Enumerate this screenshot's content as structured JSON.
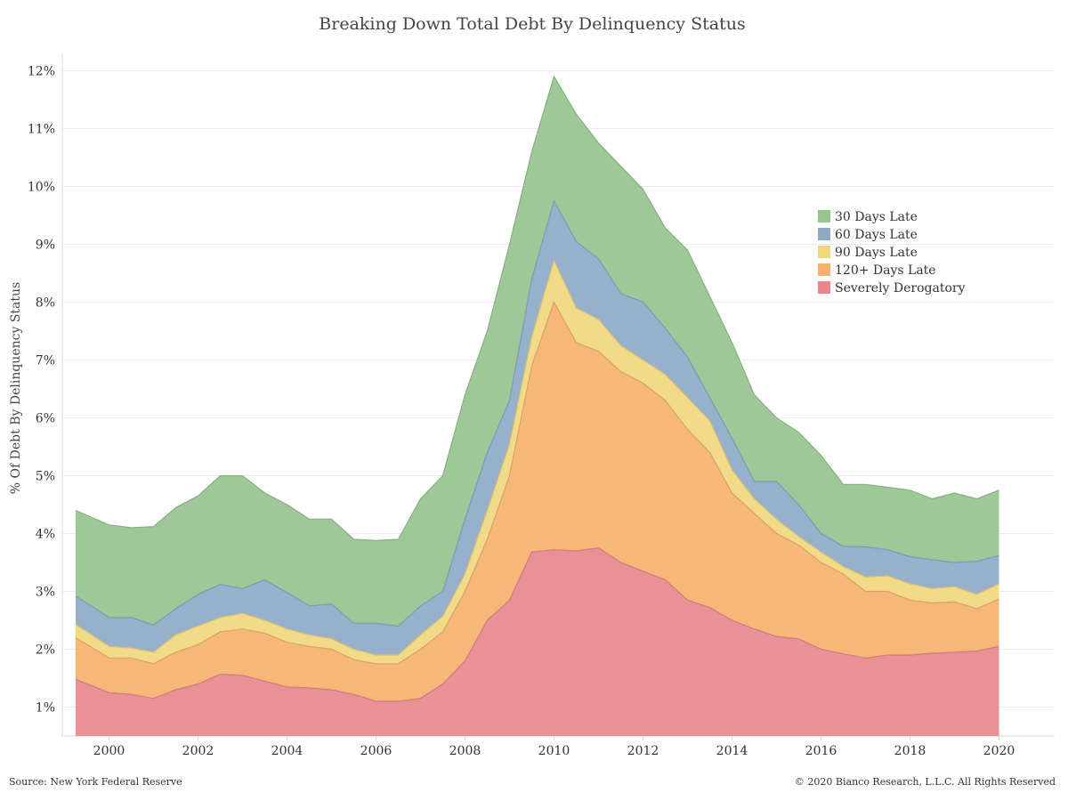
{
  "chart_data": {
    "type": "area",
    "stacked": true,
    "title": "Breaking Down Total Debt By Delinquency Status",
    "ylabel": "% Of Debt By Delinquency Status",
    "xlabel": "",
    "ylim": [
      0.5,
      12.3
    ],
    "xlim": [
      1998.95,
      2021.25
    ],
    "grid": true,
    "legend_position": "right-middle",
    "y_ticks": [
      1,
      2,
      3,
      4,
      5,
      6,
      7,
      8,
      9,
      10,
      11,
      12
    ],
    "y_tick_labels": [
      "1%",
      "2%",
      "3%",
      "4%",
      "5%",
      "6%",
      "7%",
      "8%",
      "9%",
      "10%",
      "11%",
      "12%"
    ],
    "x_ticks": [
      2000,
      2002,
      2004,
      2006,
      2008,
      2010,
      2012,
      2014,
      2016,
      2018,
      2020
    ],
    "x_tick_labels": [
      "2000",
      "2002",
      "2004",
      "2006",
      "2008",
      "2010",
      "2012",
      "2014",
      "2016",
      "2018",
      "2020"
    ],
    "x": [
      1999.25,
      2000,
      2000.5,
      2001,
      2001.5,
      2002,
      2002.5,
      2003,
      2003.5,
      2004,
      2004.5,
      2005,
      2005.5,
      2006,
      2006.5,
      2007,
      2007.5,
      2008,
      2008.5,
      2009,
      2009.5,
      2010,
      2010.5,
      2011,
      2011.5,
      2012,
      2012.5,
      2013,
      2013.5,
      2014,
      2014.5,
      2015,
      2015.5,
      2016,
      2016.5,
      2017,
      2017.5,
      2018,
      2018.5,
      2019,
      2019.5,
      2020
    ],
    "cumulative": true,
    "series": [
      {
        "name": "Severely Derogatory",
        "color": "#e8888e",
        "values": [
          1.48,
          1.25,
          1.22,
          1.15,
          1.3,
          1.4,
          1.57,
          1.55,
          1.45,
          1.35,
          1.33,
          1.3,
          1.22,
          1.1,
          1.1,
          1.15,
          1.4,
          1.8,
          2.5,
          2.85,
          3.68,
          3.72,
          3.7,
          3.75,
          3.5,
          3.35,
          3.2,
          2.85,
          2.72,
          2.5,
          2.35,
          2.22,
          2.18,
          2.0,
          1.92,
          1.85,
          1.9,
          1.9,
          1.93,
          1.95,
          1.97,
          2.05
        ]
      },
      {
        "name": "120+ Days Late",
        "color": "#f4b26e",
        "values": [
          2.2,
          1.85,
          1.85,
          1.75,
          1.95,
          2.08,
          2.3,
          2.35,
          2.28,
          2.12,
          2.05,
          2.0,
          1.82,
          1.75,
          1.75,
          2.0,
          2.3,
          3.0,
          3.9,
          5.0,
          6.9,
          8.0,
          7.3,
          7.15,
          6.8,
          6.6,
          6.3,
          5.8,
          5.4,
          4.7,
          4.35,
          4.0,
          3.8,
          3.5,
          3.3,
          3.0,
          3.0,
          2.85,
          2.8,
          2.82,
          2.7,
          2.87
        ]
      },
      {
        "name": "90 Days Late",
        "color": "#f0d77e",
        "values": [
          2.43,
          2.05,
          2.02,
          1.95,
          2.25,
          2.4,
          2.55,
          2.62,
          2.5,
          2.35,
          2.25,
          2.18,
          2.0,
          1.9,
          1.9,
          2.25,
          2.57,
          3.3,
          4.4,
          5.55,
          7.4,
          8.72,
          7.9,
          7.7,
          7.25,
          7.0,
          6.75,
          6.35,
          5.95,
          5.1,
          4.6,
          4.25,
          3.95,
          3.68,
          3.43,
          3.25,
          3.27,
          3.13,
          3.05,
          3.08,
          2.95,
          3.13
        ]
      },
      {
        "name": "60 Days Late",
        "color": "#8ea9c8",
        "values": [
          2.92,
          2.55,
          2.55,
          2.42,
          2.7,
          2.95,
          3.12,
          3.05,
          3.2,
          2.98,
          2.75,
          2.78,
          2.45,
          2.45,
          2.4,
          2.75,
          3.0,
          4.25,
          5.4,
          6.3,
          8.4,
          9.75,
          9.05,
          8.75,
          8.15,
          8.0,
          7.55,
          7.05,
          6.35,
          5.65,
          4.9,
          4.9,
          4.5,
          4.0,
          3.78,
          3.77,
          3.72,
          3.6,
          3.55,
          3.5,
          3.52,
          3.62
        ]
      },
      {
        "name": "30 Days Late",
        "color": "#96c38e",
        "values": [
          4.4,
          4.15,
          4.1,
          4.12,
          4.45,
          4.65,
          5.0,
          5.0,
          4.7,
          4.5,
          4.25,
          4.25,
          3.9,
          3.88,
          3.9,
          4.6,
          5.0,
          6.4,
          7.5,
          9.0,
          10.6,
          11.9,
          11.25,
          10.75,
          10.35,
          9.95,
          9.28,
          8.9,
          8.1,
          7.3,
          6.4,
          6.0,
          5.75,
          5.35,
          4.85,
          4.85,
          4.8,
          4.75,
          4.6,
          4.7,
          4.6,
          4.75
        ]
      }
    ]
  },
  "footer": {
    "source": "Source: New York Federal Reserve",
    "copyright": "© 2020 Bianco Research, L.L.C. All Rights Reserved"
  }
}
